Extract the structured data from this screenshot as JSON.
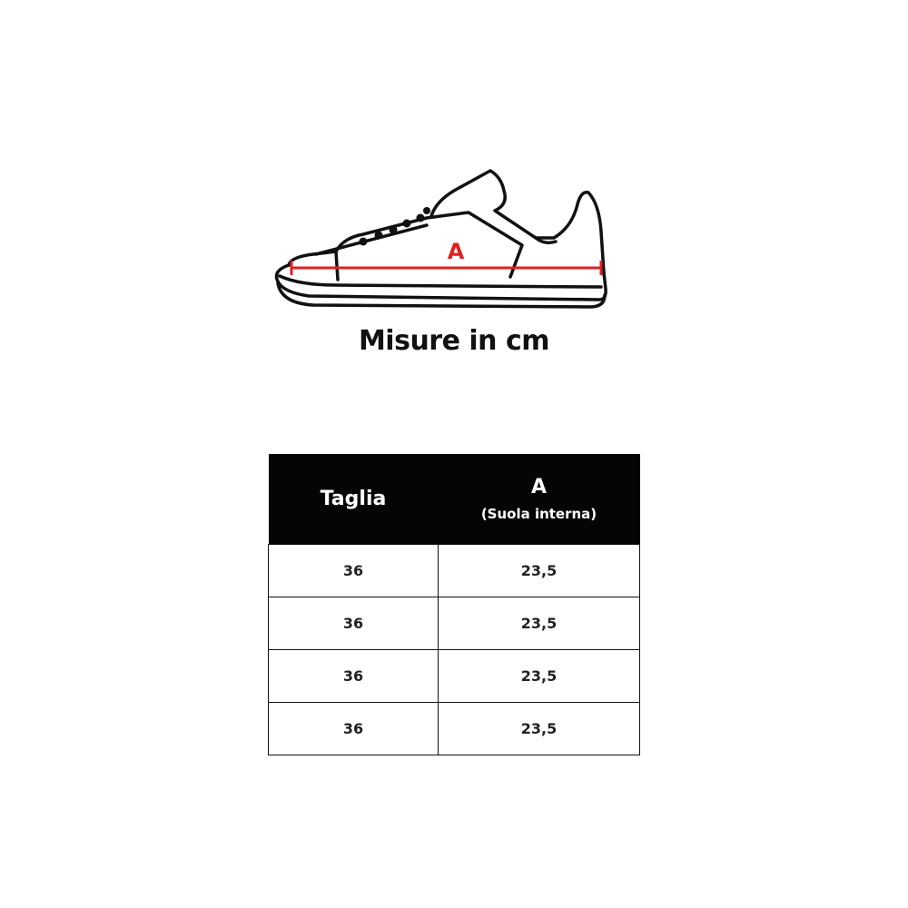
{
  "illustration": {
    "icon": "sneaker-outline-icon",
    "measure_label": "A",
    "measure_color": "#e02020"
  },
  "title": "Misure in cm",
  "table": {
    "headers": {
      "size": "Taglia",
      "a": "A",
      "a_sub": "(Suola interna)"
    },
    "rows": [
      {
        "size": "36",
        "a": "23,5"
      },
      {
        "size": "36",
        "a": "23,5"
      },
      {
        "size": "36",
        "a": "23,5"
      },
      {
        "size": "36",
        "a": "23,5"
      }
    ]
  }
}
